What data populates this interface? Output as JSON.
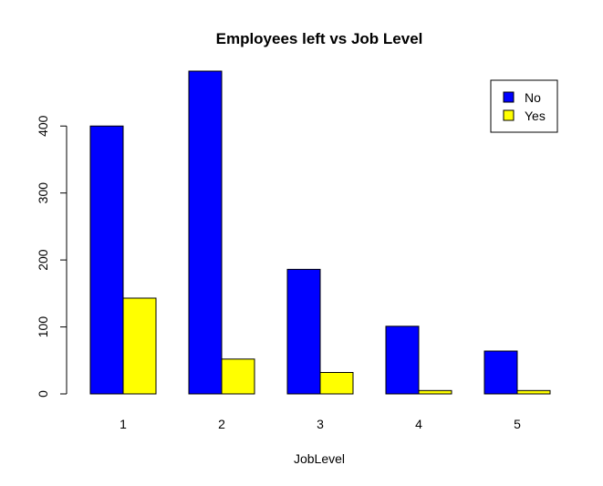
{
  "chart_data": {
    "type": "bar",
    "title": "Employees left vs Job Level",
    "xlabel": "JobLevel",
    "ylabel": "",
    "categories": [
      "1",
      "2",
      "3",
      "4",
      "5"
    ],
    "series": [
      {
        "name": "No",
        "color": "#0000ff",
        "values": [
          400,
          482,
          186,
          101,
          64
        ]
      },
      {
        "name": "Yes",
        "color": "#ffff00",
        "values": [
          143,
          52,
          32,
          5,
          5
        ]
      }
    ],
    "ylim": [
      0,
      482
    ],
    "yticks": [
      "0",
      "100",
      "200",
      "300",
      "400"
    ],
    "legend_position": "top-right",
    "grid": false
  }
}
